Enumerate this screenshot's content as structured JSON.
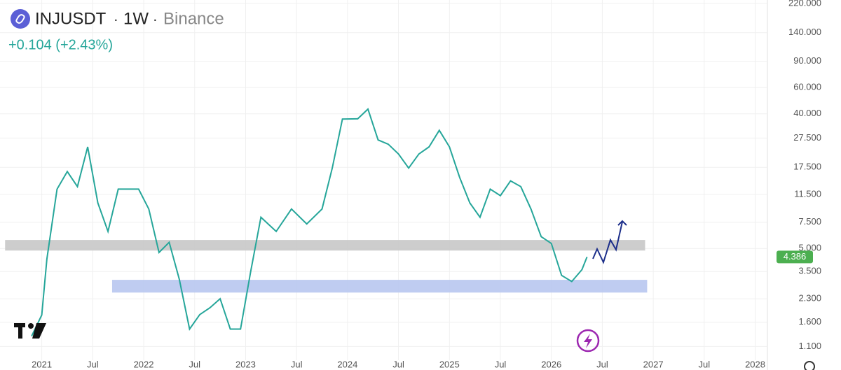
{
  "chart_data": {
    "type": "line",
    "log_scale": true,
    "grid": true,
    "symbol": "INJUSDT",
    "interval": "1W",
    "exchange": "Binance",
    "change": "+0.104 (+2.43%)",
    "last_price": 4.386,
    "xlim": [
      2020.59,
      2028.12
    ],
    "ylim": [
      0.89,
      232
    ],
    "xticks": [
      2021,
      {
        "value": 2021.5,
        "label": "Jul"
      },
      2022,
      {
        "value": 2022.5,
        "label": "Jul"
      },
      2023,
      {
        "value": 2023.5,
        "label": "Jul"
      },
      2024,
      {
        "value": 2024.5,
        "label": "Jul"
      },
      2025,
      {
        "value": 2025.5,
        "label": "Jul"
      },
      2026,
      {
        "value": 2026.5,
        "label": "Jul"
      },
      2027,
      {
        "value": 2027.5,
        "label": "Jul"
      },
      2028
    ],
    "yticks": [
      {
        "value": 220,
        "label": "220.000"
      },
      {
        "value": 140,
        "label": "140.000"
      },
      {
        "value": 90,
        "label": "90.000"
      },
      {
        "value": 60,
        "label": "60.000"
      },
      {
        "value": 40,
        "label": "40.000"
      },
      {
        "value": 27.5,
        "label": "27.500"
      },
      {
        "value": 17.5,
        "label": "17.500"
      },
      {
        "value": 11.5,
        "label": "11.500"
      },
      {
        "value": 7.5,
        "label": "7.500"
      },
      {
        "value": 5,
        "label": "5.000"
      },
      {
        "value": 3.5,
        "label": "3.500"
      },
      {
        "value": 2.3,
        "label": "2.300"
      },
      {
        "value": 1.6,
        "label": "1.600"
      },
      {
        "value": 1.1,
        "label": "1.100"
      }
    ],
    "series": [
      {
        "name": "INJUSDT",
        "color": "#26a69a",
        "x": [
          2020.9,
          2021.0,
          2021.05,
          2021.15,
          2021.25,
          2021.35,
          2021.45,
          2021.55,
          2021.65,
          2021.75,
          2021.85,
          2021.95,
          2022.05,
          2022.15,
          2022.25,
          2022.35,
          2022.45,
          2022.55,
          2022.65,
          2022.75,
          2022.85,
          2022.95,
          2023.05,
          2023.15,
          2023.3,
          2023.45,
          2023.6,
          2023.75,
          2023.85,
          2023.95,
          2024.1,
          2024.2,
          2024.3,
          2024.4,
          2024.5,
          2024.6,
          2024.7,
          2024.8,
          2024.9,
          2025.0,
          2025.1,
          2025.2,
          2025.3,
          2025.4,
          2025.5,
          2025.6,
          2025.7,
          2025.8,
          2025.9,
          2026.0,
          2026.1,
          2026.2,
          2026.3,
          2026.35
        ],
        "values": [
          1.29,
          1.79,
          4.25,
          12.5,
          16.4,
          13,
          24,
          10.1,
          6.5,
          12.5,
          12.5,
          12.5,
          9.2,
          4.7,
          5.5,
          3.1,
          1.44,
          1.8,
          2.0,
          2.3,
          1.44,
          1.44,
          3.5,
          8.1,
          6.5,
          9.2,
          7.3,
          9.2,
          17.3,
          36.9,
          37,
          43,
          26.7,
          25,
          21.5,
          17.3,
          21.5,
          24,
          31,
          24,
          15,
          10.1,
          8.1,
          12.5,
          11.3,
          14.2,
          13,
          9.2,
          6.0,
          5.4,
          3.3,
          3.0,
          3.6,
          4.386
        ]
      }
    ],
    "zones": [
      {
        "xlim": [
          2020.64,
          2026.92
        ],
        "ylim": [
          4.84,
          5.7
        ],
        "color": "#c8c8c8"
      },
      {
        "xlim": [
          2021.69,
          2026.94
        ],
        "ylim": [
          2.53,
          3.08
        ],
        "color": "#b8c6ef"
      }
    ]
  }
}
